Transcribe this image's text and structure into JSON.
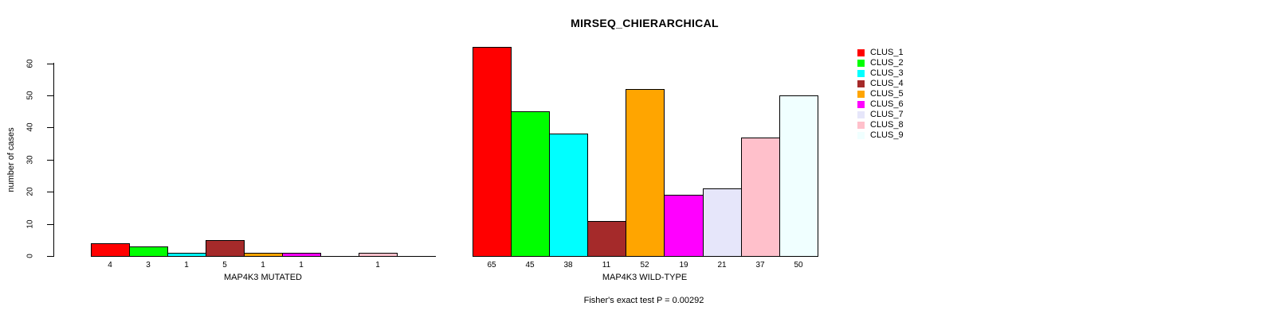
{
  "title": "MIRSEQ_CHIERARCHICAL",
  "footer": {
    "fisher_text": "Fisher's exact test P = 0.00292"
  },
  "chart_data": {
    "type": "bar",
    "title": "MIRSEQ_CHIERARCHICAL",
    "ylabel": "number of cases",
    "xlabel": "",
    "ylim": [
      0,
      60
    ],
    "y_ticks": [
      0,
      10,
      20,
      30,
      40,
      50,
      60
    ],
    "grid": false,
    "legend_position": "right",
    "clusters": [
      "CLUS_1",
      "CLUS_2",
      "CLUS_3",
      "CLUS_4",
      "CLUS_5",
      "CLUS_6",
      "CLUS_7",
      "CLUS_8",
      "CLUS_9"
    ],
    "colors": [
      "#FF0000",
      "#00FF00",
      "#00FFFF",
      "#A52A2A",
      "#FFA500",
      "#FF00FF",
      "#E6E6FA",
      "#FFC0CB",
      "#F0FFFF"
    ],
    "panels": [
      {
        "xlabel": "MAP4K3 MUTATED",
        "values": [
          4,
          3,
          1,
          5,
          1,
          1,
          0,
          1,
          0
        ]
      },
      {
        "xlabel": "MAP4K3 WILD-TYPE",
        "values": [
          65,
          45,
          38,
          11,
          52,
          19,
          21,
          37,
          50
        ]
      }
    ],
    "annotation": "Fisher's exact test P = 0.00292",
    "bar_border_color": "#000000",
    "axis_color": "#000000"
  }
}
